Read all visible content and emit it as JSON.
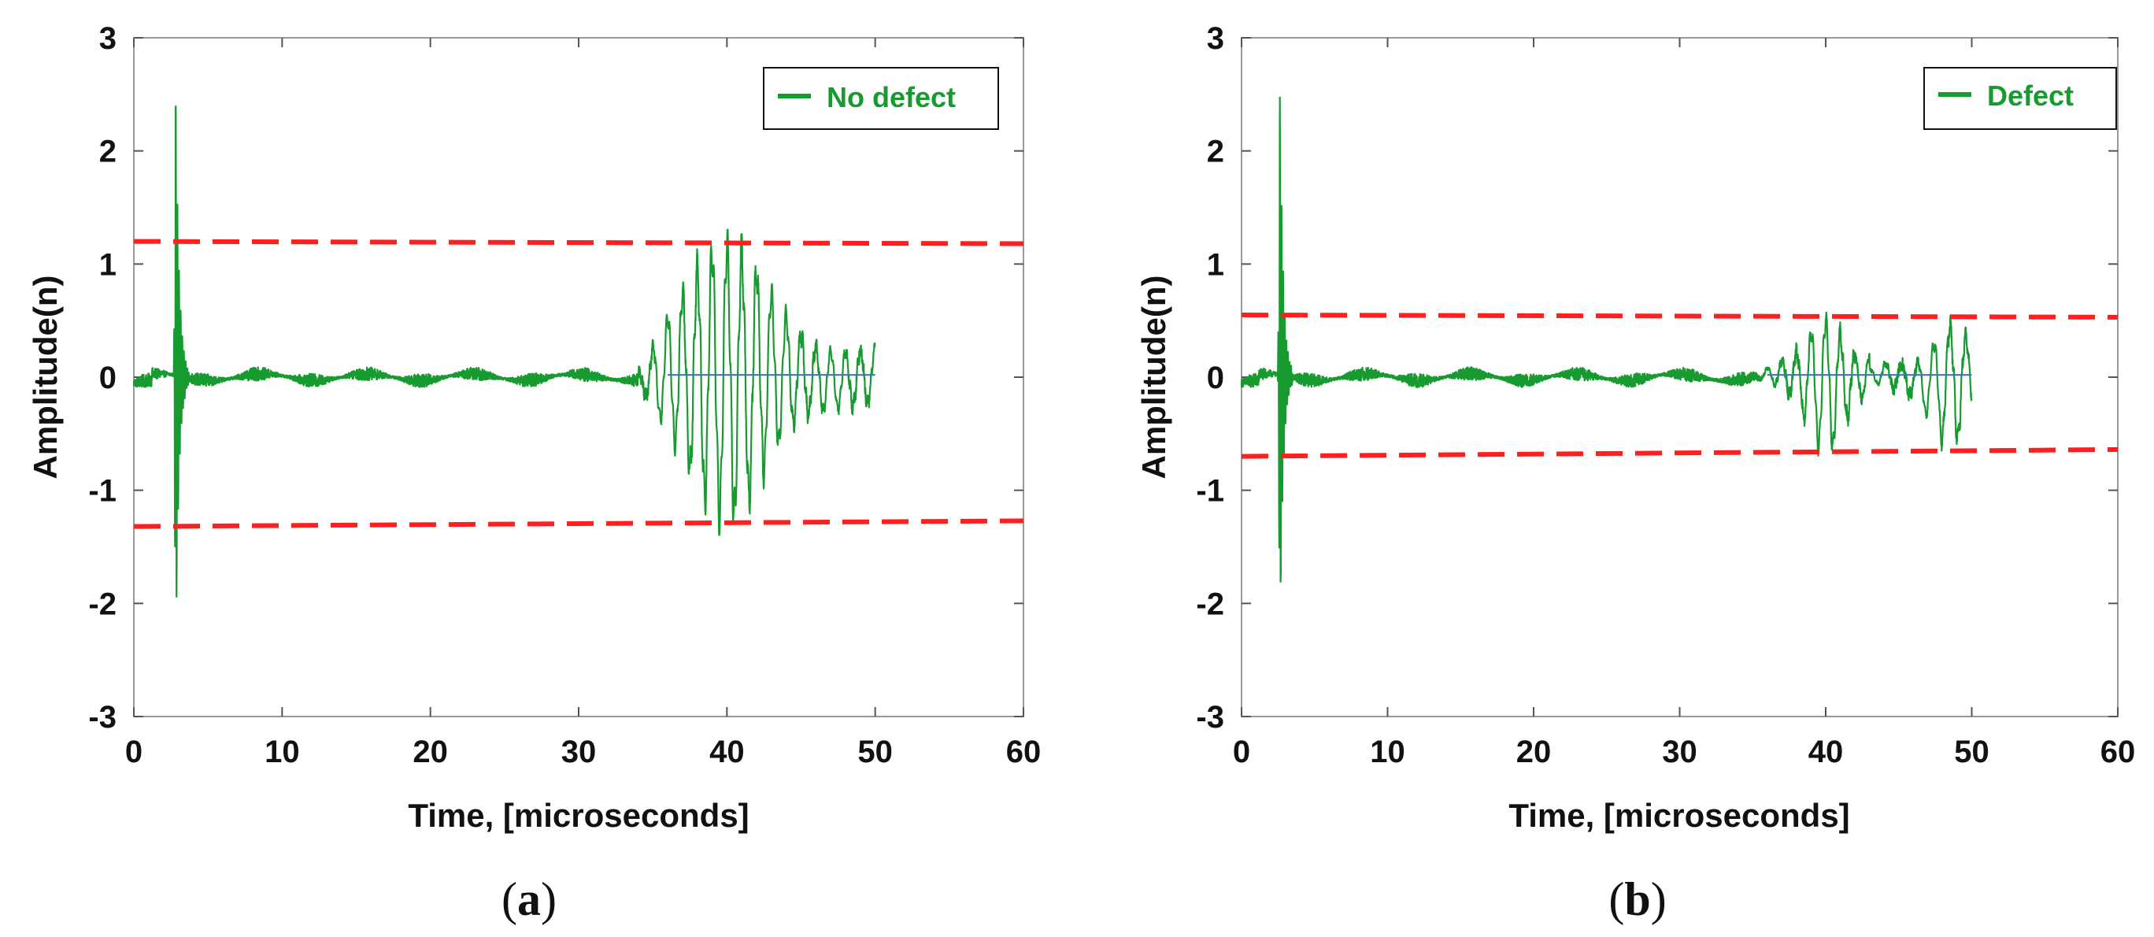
{
  "chart_data": [
    {
      "type": "line",
      "caption": "a",
      "xlabel": "Time, [microseconds]",
      "ylabel": "Amplitude(n)",
      "xlim": [
        0,
        60
      ],
      "ylim": [
        -3,
        3
      ],
      "xticks": [
        0,
        10,
        20,
        30,
        40,
        50,
        60
      ],
      "yticks": [
        -3,
        -2,
        -1,
        0,
        1,
        2,
        3
      ],
      "legend": {
        "position": "top-right",
        "entries": [
          "No defect"
        ]
      },
      "grid": false,
      "series": [
        {
          "name": "No defect",
          "color": "#179a2f",
          "noise_amplitude": 0.06,
          "t_end": 50,
          "pulse": {
            "t": 2.8,
            "max": 2.85,
            "min": -2.85
          },
          "packets": [
            {
              "t_start": 35,
              "t_end": 50,
              "center": 40,
              "peak_max": 1.18,
              "peak_min": -1.2,
              "period": 1.0
            }
          ]
        },
        {
          "name": "Baseline",
          "color": "#3a6fd8",
          "x": [
            36,
            50
          ],
          "y": [
            0.02,
            0.02
          ]
        },
        {
          "name": "Upper threshold",
          "color": "#ff1f1f",
          "dashed": true,
          "x": [
            0,
            60
          ],
          "y": [
            1.2,
            1.18
          ]
        },
        {
          "name": "Lower threshold",
          "color": "#ff1f1f",
          "dashed": true,
          "x": [
            0,
            60
          ],
          "y": [
            -1.32,
            -1.27
          ]
        }
      ]
    },
    {
      "type": "line",
      "caption": "b",
      "xlabel": "Time, [microseconds]",
      "ylabel": "Amplitude(n)",
      "xlim": [
        0,
        60
      ],
      "ylim": [
        -3,
        3
      ],
      "xticks": [
        0,
        10,
        20,
        30,
        40,
        50,
        60
      ],
      "yticks": [
        -3,
        -2,
        -1,
        0,
        1,
        2,
        3
      ],
      "legend": {
        "position": "top-right",
        "entries": [
          "Defect"
        ]
      },
      "grid": false,
      "series": [
        {
          "name": "Defect",
          "color": "#179a2f",
          "noise_amplitude": 0.06,
          "t_end": 50,
          "pulse": {
            "t": 2.6,
            "max": 2.78,
            "min": -2.75
          },
          "packets": [
            {
              "t_start": 36,
              "t_end": 43,
              "center": 40,
              "peak_max": 0.52,
              "peak_min": -0.62,
              "period": 1.0
            },
            {
              "t_start": 43,
              "t_end": 50,
              "center": 48.5,
              "peak_max": 0.45,
              "peak_min": -0.58,
              "period": 1.1
            }
          ]
        },
        {
          "name": "Baseline",
          "color": "#3a6fd8",
          "x": [
            36,
            50
          ],
          "y": [
            0.02,
            0.02
          ]
        },
        {
          "name": "Upper threshold",
          "color": "#ff1f1f",
          "dashed": true,
          "x": [
            0,
            60
          ],
          "y": [
            0.55,
            0.53
          ]
        },
        {
          "name": "Lower threshold",
          "color": "#ff1f1f",
          "dashed": true,
          "x": [
            0,
            60
          ],
          "y": [
            -0.7,
            -0.64
          ]
        }
      ]
    }
  ]
}
